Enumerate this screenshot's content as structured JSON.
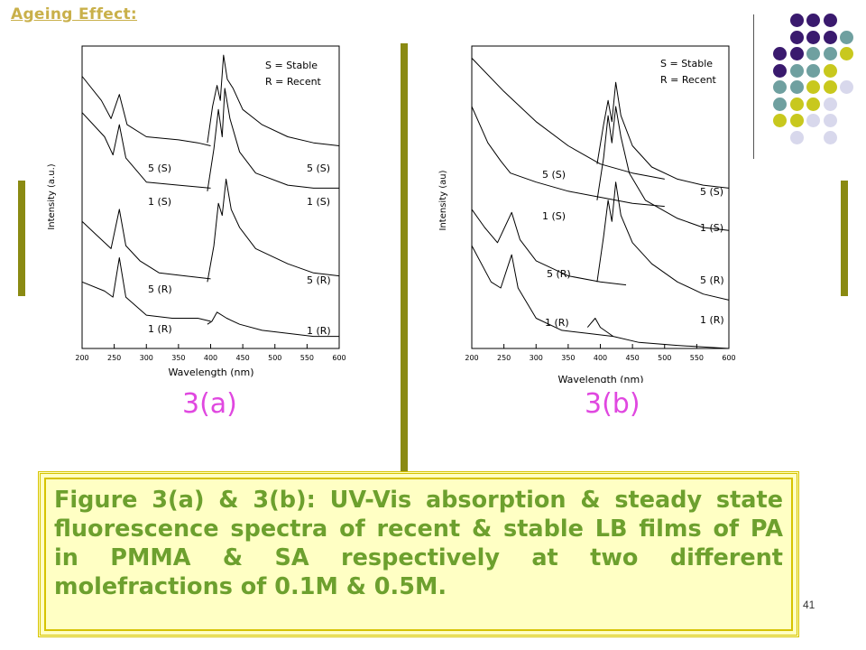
{
  "page": {
    "title": "Ageing Effect:",
    "page_number": "41"
  },
  "decor": {
    "bar_color": "#8a8a12",
    "dot_colors": {
      "purple": "#3a1a6e",
      "teal": "#6fa0a0",
      "yellow": "#c8c81e",
      "lavender": "#d8d8ec"
    },
    "dot_grid": [
      [
        "",
        "purple",
        "purple",
        "purple",
        ""
      ],
      [
        "",
        "purple",
        "purple",
        "purple",
        "teal"
      ],
      [
        "purple",
        "purple",
        "teal",
        "teal",
        "yellow"
      ],
      [
        "purple",
        "teal",
        "teal",
        "yellow",
        ""
      ],
      [
        "teal",
        "teal",
        "yellow",
        "yellow",
        "lavender"
      ],
      [
        "teal",
        "yellow",
        "yellow",
        "lavender",
        ""
      ],
      [
        "yellow",
        "yellow",
        "lavender",
        "lavender",
        ""
      ],
      [
        "",
        "lavender",
        "",
        "lavender",
        ""
      ]
    ]
  },
  "figures": [
    {
      "label": "3(a)",
      "ylabel": "Intensity (a.u.)",
      "xlabel": "Wavelength (nm)",
      "legend": [
        "S = Stable",
        "R = Recent"
      ],
      "left_labels": [
        "5 (S)",
        "1 (S)",
        "5 (R)",
        "1 (R)"
      ],
      "right_labels": [
        "5 (S)",
        "1 (S)",
        "5 (R)",
        "1 (R)"
      ]
    },
    {
      "label": "3(b)",
      "ylabel": "Intensity (au)",
      "xlabel": "Wavelength (nm)",
      "legend": [
        "S = Stable",
        "R = Recent"
      ],
      "left_labels": [
        "5 (S)",
        "1 (S)",
        "5 (R)",
        "1 (R)"
      ],
      "right_labels": [
        "5 (S)",
        "1 (S)",
        "5 (R)",
        "1 (R)"
      ]
    }
  ],
  "chart_data": [
    {
      "type": "line",
      "xlabel": "Wavelength (nm)",
      "ylabel": "Intensity (a.u.)",
      "xlim": [
        200,
        600
      ],
      "x_ticks": [
        200,
        250,
        300,
        350,
        400,
        450,
        500,
        550,
        600
      ],
      "legend_text": [
        "S = Stable",
        "R = Recent"
      ],
      "series": [
        {
          "name": "5 (S)",
          "kind": "absorption",
          "points": [
            [
              200,
              0.9
            ],
            [
              230,
              0.82
            ],
            [
              245,
              0.76
            ],
            [
              258,
              0.84
            ],
            [
              270,
              0.74
            ],
            [
              300,
              0.7
            ],
            [
              350,
              0.69
            ],
            [
              380,
              0.68
            ],
            [
              400,
              0.67
            ]
          ]
        },
        {
          "name": "5 (S)",
          "kind": "fluorescence",
          "points": [
            [
              395,
              0.68
            ],
            [
              403,
              0.8
            ],
            [
              410,
              0.87
            ],
            [
              415,
              0.82
            ],
            [
              420,
              0.97
            ],
            [
              426,
              0.89
            ],
            [
              435,
              0.86
            ],
            [
              450,
              0.79
            ],
            [
              480,
              0.74
            ],
            [
              520,
              0.7
            ],
            [
              560,
              0.68
            ],
            [
              600,
              0.67
            ]
          ]
        },
        {
          "name": "1 (S)",
          "kind": "absorption",
          "points": [
            [
              200,
              0.78
            ],
            [
              235,
              0.7
            ],
            [
              248,
              0.64
            ],
            [
              258,
              0.74
            ],
            [
              268,
              0.63
            ],
            [
              300,
              0.55
            ],
            [
              350,
              0.54
            ],
            [
              400,
              0.53
            ]
          ]
        },
        {
          "name": "1 (S)",
          "kind": "fluorescence",
          "points": [
            [
              395,
              0.52
            ],
            [
              405,
              0.66
            ],
            [
              412,
              0.79
            ],
            [
              418,
              0.7
            ],
            [
              422,
              0.86
            ],
            [
              430,
              0.76
            ],
            [
              445,
              0.65
            ],
            [
              470,
              0.58
            ],
            [
              520,
              0.54
            ],
            [
              560,
              0.53
            ],
            [
              600,
              0.53
            ]
          ]
        },
        {
          "name": "5 (R)",
          "kind": "absorption",
          "points": [
            [
              200,
              0.42
            ],
            [
              230,
              0.36
            ],
            [
              245,
              0.33
            ],
            [
              258,
              0.46
            ],
            [
              268,
              0.34
            ],
            [
              290,
              0.29
            ],
            [
              320,
              0.25
            ],
            [
              360,
              0.24
            ],
            [
              400,
              0.23
            ]
          ]
        },
        {
          "name": "5 (R)",
          "kind": "fluorescence",
          "points": [
            [
              395,
              0.22
            ],
            [
              405,
              0.34
            ],
            [
              412,
              0.48
            ],
            [
              418,
              0.44
            ],
            [
              424,
              0.56
            ],
            [
              432,
              0.46
            ],
            [
              445,
              0.4
            ],
            [
              470,
              0.33
            ],
            [
              520,
              0.28
            ],
            [
              560,
              0.25
            ],
            [
              600,
              0.24
            ]
          ]
        },
        {
          "name": "1 (R)",
          "kind": "absorption",
          "points": [
            [
              200,
              0.22
            ],
            [
              235,
              0.19
            ],
            [
              248,
              0.17
            ],
            [
              258,
              0.3
            ],
            [
              268,
              0.17
            ],
            [
              300,
              0.11
            ],
            [
              340,
              0.1
            ],
            [
              380,
              0.1
            ],
            [
              400,
              0.09
            ]
          ]
        },
        {
          "name": "1 (R)",
          "kind": "fluorescence",
          "points": [
            [
              395,
              0.08
            ],
            [
              402,
              0.09
            ],
            [
              410,
              0.12
            ],
            [
              425,
              0.1
            ],
            [
              445,
              0.08
            ],
            [
              480,
              0.06
            ],
            [
              520,
              0.05
            ],
            [
              560,
              0.04
            ],
            [
              600,
              0.04
            ]
          ]
        }
      ]
    },
    {
      "type": "line",
      "xlabel": "Wavelength (nm)",
      "ylabel": "Intensity (au)",
      "xlim": [
        200,
        600
      ],
      "x_ticks": [
        200,
        250,
        300,
        350,
        400,
        450,
        500,
        550,
        600
      ],
      "legend_text": [
        "S = Stable",
        "R = Recent"
      ],
      "series": [
        {
          "name": "5 (S)",
          "kind": "absorption",
          "points": [
            [
              200,
              0.96
            ],
            [
              250,
              0.85
            ],
            [
              300,
              0.75
            ],
            [
              350,
              0.67
            ],
            [
              400,
              0.61
            ],
            [
              450,
              0.58
            ],
            [
              500,
              0.56
            ]
          ]
        },
        {
          "name": "5 (S)",
          "kind": "fluorescence",
          "points": [
            [
              395,
              0.61
            ],
            [
              405,
              0.74
            ],
            [
              412,
              0.82
            ],
            [
              418,
              0.75
            ],
            [
              424,
              0.88
            ],
            [
              432,
              0.77
            ],
            [
              450,
              0.67
            ],
            [
              480,
              0.6
            ],
            [
              520,
              0.56
            ],
            [
              560,
              0.54
            ],
            [
              600,
              0.53
            ]
          ]
        },
        {
          "name": "1 (S)",
          "kind": "absorption",
          "points": [
            [
              200,
              0.8
            ],
            [
              225,
              0.68
            ],
            [
              245,
              0.62
            ],
            [
              260,
              0.58
            ],
            [
              300,
              0.55
            ],
            [
              350,
              0.52
            ],
            [
              400,
              0.5
            ],
            [
              450,
              0.48
            ],
            [
              500,
              0.47
            ]
          ]
        },
        {
          "name": "1 (S)",
          "kind": "fluorescence",
          "points": [
            [
              395,
              0.49
            ],
            [
              405,
              0.63
            ],
            [
              412,
              0.77
            ],
            [
              418,
              0.68
            ],
            [
              424,
              0.8
            ],
            [
              432,
              0.7
            ],
            [
              445,
              0.58
            ],
            [
              470,
              0.49
            ],
            [
              520,
              0.43
            ],
            [
              560,
              0.4
            ],
            [
              600,
              0.39
            ]
          ]
        },
        {
          "name": "5 (R)",
          "kind": "absorption",
          "points": [
            [
              200,
              0.46
            ],
            [
              220,
              0.4
            ],
            [
              240,
              0.35
            ],
            [
              262,
              0.45
            ],
            [
              275,
              0.36
            ],
            [
              300,
              0.29
            ],
            [
              350,
              0.24
            ],
            [
              400,
              0.22
            ],
            [
              440,
              0.21
            ]
          ]
        },
        {
          "name": "5 (R)",
          "kind": "fluorescence",
          "points": [
            [
              395,
              0.22
            ],
            [
              405,
              0.37
            ],
            [
              412,
              0.49
            ],
            [
              418,
              0.42
            ],
            [
              424,
              0.55
            ],
            [
              432,
              0.44
            ],
            [
              450,
              0.35
            ],
            [
              480,
              0.28
            ],
            [
              520,
              0.22
            ],
            [
              560,
              0.18
            ],
            [
              600,
              0.16
            ]
          ]
        },
        {
          "name": "1 (R)",
          "kind": "absorption",
          "points": [
            [
              200,
              0.34
            ],
            [
              230,
              0.22
            ],
            [
              245,
              0.2
            ],
            [
              262,
              0.31
            ],
            [
              272,
              0.2
            ],
            [
              300,
              0.1
            ],
            [
              340,
              0.06
            ],
            [
              380,
              0.05
            ],
            [
              420,
              0.04
            ]
          ]
        },
        {
          "name": "1 (R)",
          "kind": "fluorescence",
          "points": [
            [
              380,
              0.07
            ],
            [
              392,
              0.1
            ],
            [
              400,
              0.07
            ],
            [
              420,
              0.04
            ],
            [
              460,
              0.02
            ],
            [
              520,
              0.01
            ],
            [
              600,
              0.0
            ]
          ]
        }
      ]
    }
  ],
  "caption": "Figure 3(a) & 3(b): UV-Vis absorption & steady state fluorescence spectra of recent & stable LB films of PA in PMMA & SA respectively at two different molefractions of 0.1M & 0.5M."
}
